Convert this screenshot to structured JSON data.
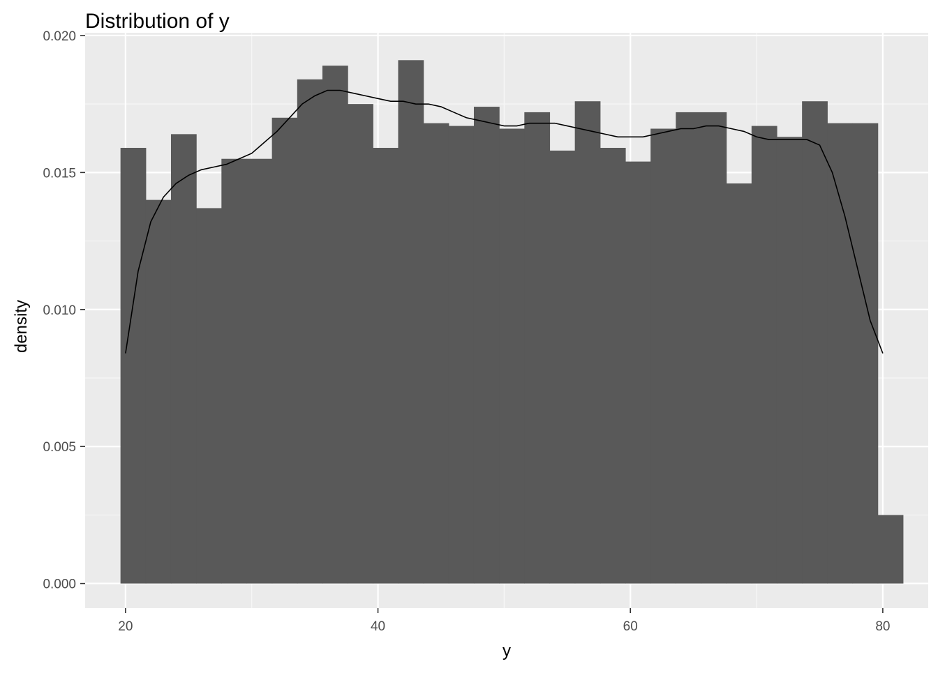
{
  "chart_data": {
    "type": "bar",
    "subtype": "histogram",
    "title": "Distribution of y",
    "xlabel": "y",
    "ylabel": "density",
    "xlim": [
      16.8,
      83.6
    ],
    "ylim": [
      -0.0009,
      0.0201
    ],
    "x_ticks": [
      20,
      40,
      60,
      80
    ],
    "x_tick_labels": [
      "20",
      "40",
      "60",
      "80"
    ],
    "y_ticks": [
      0.0,
      0.005,
      0.01,
      0.015,
      0.02
    ],
    "y_tick_labels": [
      "0.000",
      "0.005",
      "0.010",
      "0.015",
      "0.020"
    ],
    "grid": true,
    "bin_width": 2.0,
    "bins": [
      {
        "x0": 19.6,
        "x1": 21.6,
        "value": 0.0159
      },
      {
        "x0": 21.6,
        "x1": 23.6,
        "value": 0.014
      },
      {
        "x0": 23.6,
        "x1": 25.6,
        "value": 0.0164
      },
      {
        "x0": 25.6,
        "x1": 27.6,
        "value": 0.0137
      },
      {
        "x0": 27.6,
        "x1": 29.6,
        "value": 0.0155
      },
      {
        "x0": 29.6,
        "x1": 31.6,
        "value": 0.0155
      },
      {
        "x0": 31.6,
        "x1": 33.6,
        "value": 0.017
      },
      {
        "x0": 33.6,
        "x1": 35.6,
        "value": 0.0184
      },
      {
        "x0": 35.6,
        "x1": 37.6,
        "value": 0.0189
      },
      {
        "x0": 37.6,
        "x1": 39.6,
        "value": 0.0175
      },
      {
        "x0": 39.6,
        "x1": 41.6,
        "value": 0.0159
      },
      {
        "x0": 41.6,
        "x1": 43.6,
        "value": 0.0191
      },
      {
        "x0": 43.6,
        "x1": 45.6,
        "value": 0.0168
      },
      {
        "x0": 45.6,
        "x1": 47.6,
        "value": 0.0167
      },
      {
        "x0": 47.6,
        "x1": 49.6,
        "value": 0.0174
      },
      {
        "x0": 49.6,
        "x1": 51.6,
        "value": 0.0166
      },
      {
        "x0": 51.6,
        "x1": 53.6,
        "value": 0.0172
      },
      {
        "x0": 53.6,
        "x1": 55.6,
        "value": 0.0158
      },
      {
        "x0": 55.6,
        "x1": 57.6,
        "value": 0.0176
      },
      {
        "x0": 57.6,
        "x1": 59.6,
        "value": 0.0159
      },
      {
        "x0": 59.6,
        "x1": 61.6,
        "value": 0.0154
      },
      {
        "x0": 61.6,
        "x1": 63.6,
        "value": 0.0166
      },
      {
        "x0": 63.6,
        "x1": 65.6,
        "value": 0.0172
      },
      {
        "x0": 65.6,
        "x1": 67.6,
        "value": 0.0172
      },
      {
        "x0": 67.6,
        "x1": 69.6,
        "value": 0.0146
      },
      {
        "x0": 69.6,
        "x1": 71.6,
        "value": 0.0167
      },
      {
        "x0": 71.6,
        "x1": 73.6,
        "value": 0.0163
      },
      {
        "x0": 73.6,
        "x1": 75.6,
        "value": 0.0176
      },
      {
        "x0": 75.6,
        "x1": 77.6,
        "value": 0.0168
      },
      {
        "x0": 77.6,
        "x1": 79.6,
        "value": 0.0168
      },
      {
        "x0": 79.6,
        "x1": 81.6,
        "value": 0.0025
      }
    ],
    "density_curve": {
      "x": [
        20,
        21,
        22,
        23,
        24,
        25,
        26,
        27,
        28,
        29,
        30,
        31,
        32,
        33,
        34,
        35,
        36,
        37,
        38,
        39,
        40,
        41,
        42,
        43,
        44,
        45,
        46,
        47,
        48,
        49,
        50,
        51,
        52,
        53,
        54,
        55,
        56,
        57,
        58,
        59,
        60,
        61,
        62,
        63,
        64,
        65,
        66,
        67,
        68,
        69,
        70,
        71,
        72,
        73,
        74,
        75,
        76,
        77,
        78,
        79,
        80
      ],
      "y": [
        0.0084,
        0.0114,
        0.0132,
        0.0141,
        0.0146,
        0.0149,
        0.0151,
        0.0152,
        0.0153,
        0.0155,
        0.0157,
        0.0161,
        0.0165,
        0.017,
        0.0175,
        0.0178,
        0.018,
        0.018,
        0.0179,
        0.0178,
        0.0177,
        0.0176,
        0.0176,
        0.0175,
        0.0175,
        0.0174,
        0.0172,
        0.017,
        0.0169,
        0.0168,
        0.0167,
        0.0167,
        0.0168,
        0.0168,
        0.0168,
        0.0167,
        0.0166,
        0.0165,
        0.0164,
        0.0163,
        0.0163,
        0.0163,
        0.0164,
        0.0165,
        0.0166,
        0.0166,
        0.0167,
        0.0167,
        0.0166,
        0.0165,
        0.0163,
        0.0162,
        0.0162,
        0.0162,
        0.0162,
        0.016,
        0.015,
        0.0134,
        0.0115,
        0.0096,
        0.0084
      ]
    },
    "colors": {
      "panel_background": "#ebebeb",
      "grid_major": "#ffffff",
      "grid_minor": "#f7f7f7",
      "bar_fill": "#595959",
      "curve": "#000000",
      "tick_mark": "#333333",
      "tick_label": "#4d4d4d"
    }
  }
}
